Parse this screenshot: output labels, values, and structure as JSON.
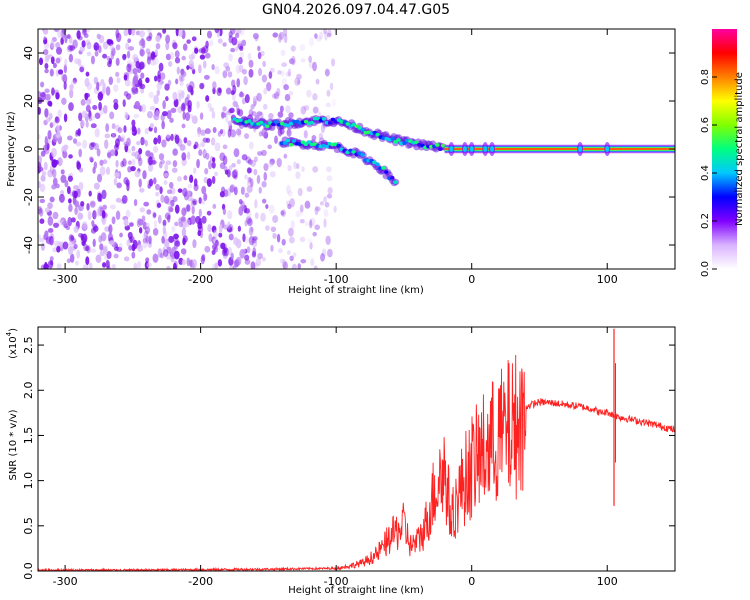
{
  "figure": {
    "title": "GN04.2026.097.04.47.G05"
  },
  "chart_data": [
    {
      "type": "heatmap",
      "xlabel": "Height of straight line (km)",
      "ylabel": "Frequency (Hz)",
      "xlim": [
        -320,
        150
      ],
      "ylim": [
        -50,
        50
      ],
      "xticks": [
        -300,
        -200,
        -100,
        0,
        100
      ],
      "yticks": [
        -40,
        -20,
        0,
        20,
        40
      ],
      "colorbar": {
        "label": "Normalized spectral amplitude",
        "range": [
          0.0,
          1.0
        ],
        "ticks": [
          0.0,
          0.2,
          0.4,
          0.6,
          0.8
        ],
        "colormap": [
          "#ffffff",
          "#d9b3ff",
          "#8000ff",
          "#0000ff",
          "#00c8ff",
          "#00ff80",
          "#80ff00",
          "#ffff00",
          "#ff8000",
          "#ff0000",
          "#ff00a0"
        ]
      },
      "features": {
        "noise_region_x": [
          -320,
          -115
        ],
        "main_track": [
          {
            "x": -175,
            "y": 12
          },
          {
            "x": -150,
            "y": 10
          },
          {
            "x": -130,
            "y": 11
          },
          {
            "x": -110,
            "y": 12
          },
          {
            "x": -95,
            "y": 11
          },
          {
            "x": -80,
            "y": 8
          },
          {
            "x": -65,
            "y": 5
          },
          {
            "x": -50,
            "y": 3
          },
          {
            "x": -35,
            "y": 1.5
          },
          {
            "x": -20,
            "y": 0.5
          },
          {
            "x": 0,
            "y": 0
          },
          {
            "x": 50,
            "y": 0
          },
          {
            "x": 100,
            "y": 0
          },
          {
            "x": 150,
            "y": 0
          }
        ],
        "secondary_track": [
          {
            "x": -140,
            "y": 3
          },
          {
            "x": -120,
            "y": 2
          },
          {
            "x": -100,
            "y": 1
          },
          {
            "x": -85,
            "y": -2
          },
          {
            "x": -75,
            "y": -5
          },
          {
            "x": -65,
            "y": -9
          },
          {
            "x": -55,
            "y": -15
          }
        ]
      }
    },
    {
      "type": "line",
      "xlabel": "Height of straight line (km)",
      "ylabel": "SNR (10 * v/v)",
      "multiplier": "(x10",
      "multiplier_exp": "4",
      "multiplier_close": ")",
      "xlim": [
        -320,
        150
      ],
      "ylim": [
        0,
        2.7
      ],
      "xticks": [
        -300,
        -200,
        -100,
        0,
        100
      ],
      "yticks": [
        0.0,
        0.5,
        1.0,
        1.5,
        2.0,
        2.5
      ],
      "series": [
        {
          "color": "#ff2020",
          "points": [
            {
              "x": -320,
              "y": 0.01
            },
            {
              "x": -250,
              "y": 0.01
            },
            {
              "x": -150,
              "y": 0.02
            },
            {
              "x": -100,
              "y": 0.03
            },
            {
              "x": -90,
              "y": 0.06
            },
            {
              "x": -80,
              "y": 0.1
            },
            {
              "x": -70,
              "y": 0.2
            },
            {
              "x": -60,
              "y": 0.4
            },
            {
              "x": -50,
              "y": 0.55
            },
            {
              "x": -45,
              "y": 0.3
            },
            {
              "x": -40,
              "y": 0.35
            },
            {
              "x": -35,
              "y": 0.5
            },
            {
              "x": -30,
              "y": 0.8
            },
            {
              "x": -25,
              "y": 1.1
            },
            {
              "x": -20,
              "y": 1.2
            },
            {
              "x": -15,
              "y": 0.6
            },
            {
              "x": -10,
              "y": 0.9
            },
            {
              "x": -5,
              "y": 1.1
            },
            {
              "x": 0,
              "y": 1.25
            },
            {
              "x": 10,
              "y": 1.45
            },
            {
              "x": 20,
              "y": 1.6
            },
            {
              "x": 30,
              "y": 1.72
            },
            {
              "x": 40,
              "y": 1.82
            },
            {
              "x": 50,
              "y": 1.87
            },
            {
              "x": 60,
              "y": 1.86
            },
            {
              "x": 80,
              "y": 1.82
            },
            {
              "x": 90,
              "y": 1.79
            },
            {
              "x": 95,
              "y": 1.75
            },
            {
              "x": 100,
              "y": 1.76
            },
            {
              "x": 105,
              "y": 1.72
            },
            {
              "x": 110,
              "y": 1.7
            },
            {
              "x": 120,
              "y": 1.67
            },
            {
              "x": 135,
              "y": 1.62
            },
            {
              "x": 150,
              "y": 1.56
            }
          ],
          "spike": {
            "x": 105,
            "ymax": 2.68,
            "ymin": 0.72
          }
        }
      ]
    }
  ]
}
